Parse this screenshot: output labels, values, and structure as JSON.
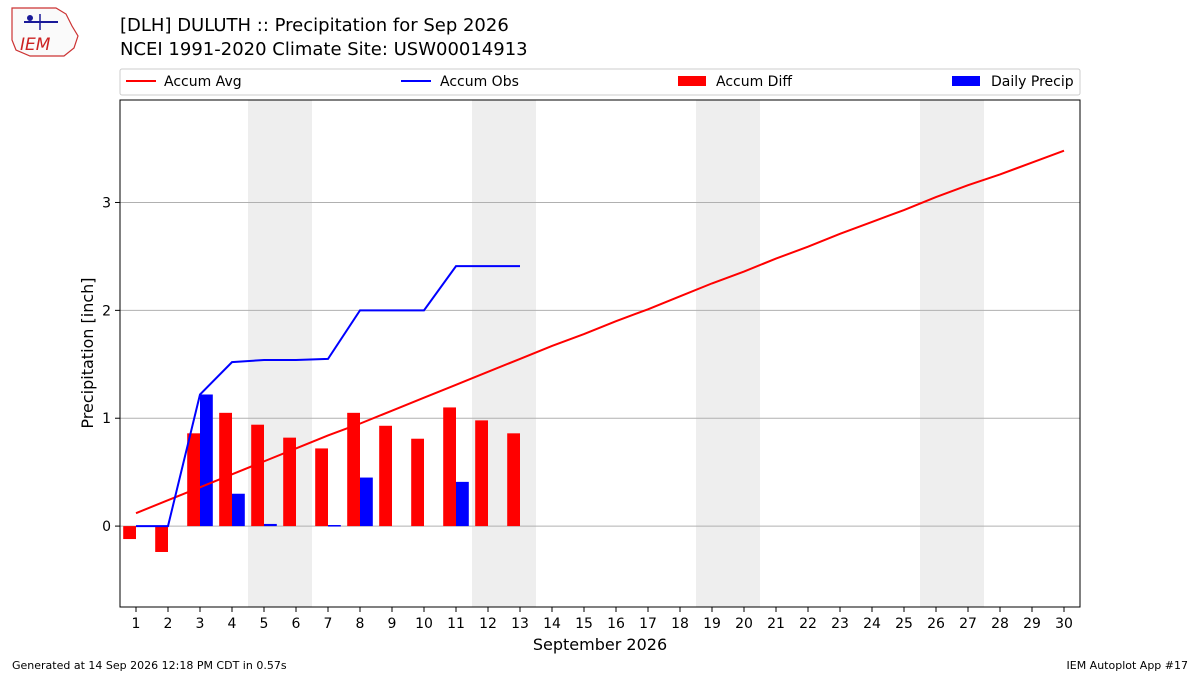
{
  "header": {
    "title_line1": "[DLH] DULUTH :: Precipitation for Sep 2026",
    "title_line2": "NCEI 1991-2020 Climate Site: USW00014913"
  },
  "logo": {
    "text": "IEM"
  },
  "footer": {
    "generated": "Generated at 14 Sep 2026 12:18 PM CDT in 0.57s",
    "app": "IEM Autoplot App #17"
  },
  "colors": {
    "accum_avg": "#ff0000",
    "accum_obs": "#0000ff",
    "accum_diff": "#ff0000",
    "daily_precip": "#0000ff",
    "weekend_shade": "#eeeeee",
    "grid": "#b0b0b0"
  },
  "chart_data": {
    "type": "bar",
    "xlabel": "September 2026",
    "ylabel": "Precipitation [inch]",
    "xlim": [
      0.5,
      30.5
    ],
    "ylim": [
      -0.75,
      3.95
    ],
    "yticks": [
      0,
      1,
      2,
      3
    ],
    "grid": "horizontal",
    "legend_position": "top",
    "weekend_days": [
      5,
      6,
      12,
      13,
      19,
      20,
      26,
      27
    ],
    "days": [
      1,
      2,
      3,
      4,
      5,
      6,
      7,
      8,
      9,
      10,
      11,
      12,
      13,
      14,
      15,
      16,
      17,
      18,
      19,
      20,
      21,
      22,
      23,
      24,
      25,
      26,
      27,
      28,
      29,
      30
    ],
    "series": [
      {
        "name": "Accum Avg",
        "kind": "line",
        "values": [
          0.12,
          0.24,
          0.36,
          0.48,
          0.6,
          0.72,
          0.84,
          0.95,
          1.07,
          1.19,
          1.31,
          1.43,
          1.55,
          1.67,
          1.78,
          1.9,
          2.01,
          2.13,
          2.25,
          2.36,
          2.48,
          2.59,
          2.71,
          2.82,
          2.93,
          3.05,
          3.16,
          3.26,
          3.37,
          3.48
        ]
      },
      {
        "name": "Accum Obs",
        "kind": "line",
        "values": [
          0.0,
          0.0,
          1.22,
          1.52,
          1.54,
          1.54,
          1.55,
          2.0,
          2.0,
          2.0,
          2.41,
          2.41,
          2.41
        ]
      },
      {
        "name": "Accum Diff",
        "kind": "bar",
        "values": [
          -0.12,
          -0.24,
          0.86,
          1.05,
          0.94,
          0.82,
          0.72,
          1.05,
          0.93,
          0.81,
          1.1,
          0.98,
          0.86
        ]
      },
      {
        "name": "Daily Precip",
        "kind": "bar",
        "values": [
          0.0,
          0.0,
          1.22,
          0.3,
          0.02,
          0.0,
          0.01,
          0.45,
          0.0,
          0.0,
          0.41,
          0.0,
          0.0
        ]
      }
    ]
  }
}
